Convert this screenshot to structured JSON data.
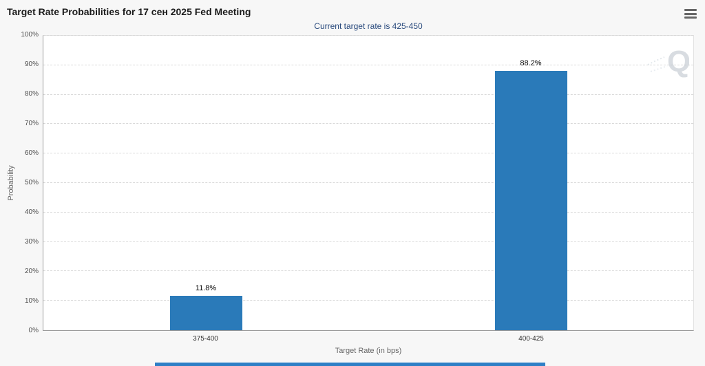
{
  "header": {
    "title": "Target Rate Probabilities for 17 сен 2025 Fed Meeting",
    "menu_icon": "hamburger-menu-icon"
  },
  "subtitle": "Current target rate is 425-450",
  "watermark_letter": "Q",
  "colors": {
    "bar": "#2a7ab9",
    "subtitle_text": "#28497c",
    "footer_strip": "#2e7fc6",
    "background": "#f7f7f7",
    "plot_background": "#ffffff"
  },
  "chart_data": {
    "type": "bar",
    "title": "Target Rate Probabilities for 17 сен 2025 Fed Meeting",
    "subtitle": "Current target rate is 425-450",
    "categories": [
      "375-400",
      "400-425"
    ],
    "values": [
      11.8,
      88.2
    ],
    "data_labels": [
      "11.8%",
      "88.2%"
    ],
    "xlabel": "Target Rate (in bps)",
    "ylabel": "Probability",
    "ylim": [
      0,
      100
    ],
    "ytick_step": 10,
    "yticks": [
      "0%",
      "10%",
      "20%",
      "30%",
      "40%",
      "50%",
      "60%",
      "70%",
      "80%",
      "90%",
      "100%"
    ],
    "grid": "horizontal-dashed",
    "legend": "none",
    "bar_color": "#2a7ab9"
  }
}
